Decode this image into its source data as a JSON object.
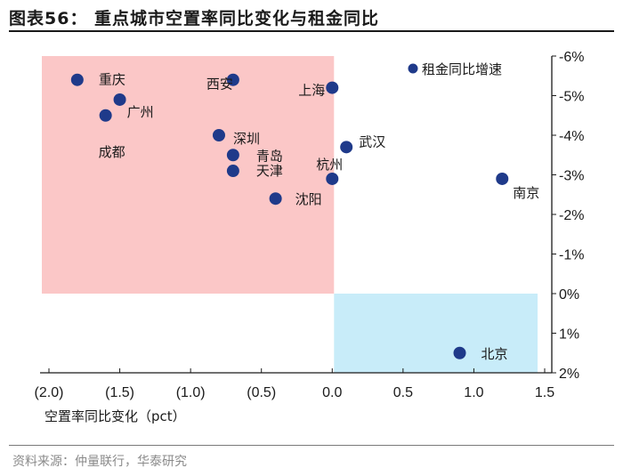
{
  "header": {
    "title": "图表56：  重点城市空置率同比变化与租金同比"
  },
  "footer": {
    "source": "资料来源：仲量联行，华泰研究"
  },
  "colors": {
    "point": "#1f3a8a",
    "quadrant_red": "#fbc7c7",
    "quadrant_blue": "#c8ecf9",
    "axis": "#1a1a1a"
  },
  "chart_data": {
    "type": "scatter",
    "title": "重点城市空置率同比变化与租金同比",
    "xlabel": "空置率同比变化（pct）",
    "ylabel": "",
    "xlim": [
      -2.0,
      1.5
    ],
    "ylim": [
      2,
      -6
    ],
    "y_inverted": true,
    "xticks": [
      -2.0,
      -1.5,
      -1.0,
      -0.5,
      0.0,
      0.5,
      1.0,
      1.5
    ],
    "xtick_labels": [
      "(2.0)",
      "(1.5)",
      "(1.0)",
      "(0.5)",
      "0.0",
      "0.5",
      "1.0",
      "1.5"
    ],
    "yticks": [
      -6,
      -5,
      -4,
      -3,
      -2,
      -1,
      0,
      1,
      2
    ],
    "ytick_labels": [
      "-6%",
      "-5%",
      "-4%",
      "-3%",
      "-2%",
      "-1%",
      "0%",
      "1%",
      "2%"
    ],
    "legend": {
      "label": "租金同比增速",
      "position": "top-right"
    },
    "shaded_regions": [
      {
        "color": "red",
        "x": [
          -2.0,
          0.0
        ],
        "y": [
          0,
          -6
        ]
      },
      {
        "color": "blue",
        "x": [
          0.0,
          1.45
        ],
        "y": [
          0,
          2
        ]
      }
    ],
    "series": [
      {
        "name": "租金同比增速",
        "points": [
          {
            "label": "重庆",
            "x": -1.8,
            "y": -5.4
          },
          {
            "label": "广州",
            "x": -1.5,
            "y": -4.9
          },
          {
            "label": "成都",
            "x": -1.6,
            "y": -4.5
          },
          {
            "label": "西安",
            "x": -0.7,
            "y": -5.4
          },
          {
            "label": "深圳",
            "x": -0.8,
            "y": -4.0
          },
          {
            "label": "青岛",
            "x": -0.7,
            "y": -3.5
          },
          {
            "label": "天津",
            "x": -0.7,
            "y": -3.1
          },
          {
            "label": "沈阳",
            "x": -0.4,
            "y": -2.4
          },
          {
            "label": "上海",
            "x": 0.0,
            "y": -5.2
          },
          {
            "label": "武汉",
            "x": 0.1,
            "y": -3.7
          },
          {
            "label": "杭州",
            "x": 0.0,
            "y": -2.9
          },
          {
            "label": "南京",
            "x": 1.2,
            "y": -2.9
          },
          {
            "label": "北京",
            "x": 0.9,
            "y": 1.5
          }
        ]
      }
    ]
  }
}
